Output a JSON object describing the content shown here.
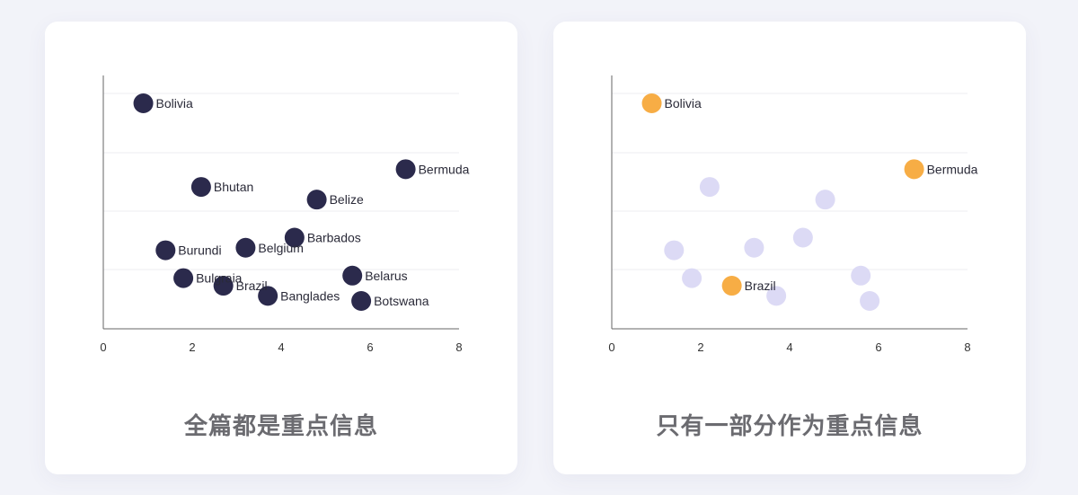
{
  "panels": [
    {
      "caption": "全篇都是重点信息",
      "chart_data": {
        "type": "scatter",
        "xlim": [
          0,
          8
        ],
        "ylim": [
          0,
          10
        ],
        "x_ticks": [
          "0",
          "2",
          "4",
          "6",
          "8"
        ],
        "grid": "horizontal",
        "points": [
          {
            "label": "Bolivia",
            "x": 0.9,
            "y": 8.9,
            "highlight": true
          },
          {
            "label": "Bermuda",
            "x": 6.8,
            "y": 6.3,
            "highlight": true
          },
          {
            "label": "Bhutan",
            "x": 2.2,
            "y": 5.6,
            "highlight": true
          },
          {
            "label": "Belize",
            "x": 4.8,
            "y": 5.1,
            "highlight": true
          },
          {
            "label": "Barbados",
            "x": 4.3,
            "y": 3.6,
            "highlight": true
          },
          {
            "label": "Burundi",
            "x": 1.4,
            "y": 3.1,
            "highlight": true
          },
          {
            "label": "Belgium",
            "x": 3.2,
            "y": 3.2,
            "highlight": true
          },
          {
            "label": "Belarus",
            "x": 5.6,
            "y": 2.1,
            "highlight": true
          },
          {
            "label": "Bulgraia",
            "x": 1.8,
            "y": 2.0,
            "highlight": true
          },
          {
            "label": "Brazil",
            "x": 2.7,
            "y": 1.7,
            "highlight": true
          },
          {
            "label": "Banglades",
            "x": 3.7,
            "y": 1.3,
            "highlight": true
          },
          {
            "label": "Botswana",
            "x": 5.8,
            "y": 1.1,
            "highlight": true
          }
        ]
      },
      "colors": {
        "highlight": "#2b2a4c",
        "muted": "#2b2a4c"
      }
    },
    {
      "caption": "只有一部分作为重点信息",
      "chart_data": {
        "type": "scatter",
        "xlim": [
          0,
          8
        ],
        "ylim": [
          0,
          10
        ],
        "x_ticks": [
          "0",
          "2",
          "4",
          "6",
          "8"
        ],
        "grid": "horizontal",
        "points": [
          {
            "label": "Bolivia",
            "x": 0.9,
            "y": 8.9,
            "highlight": true
          },
          {
            "label": "Bermuda",
            "x": 6.8,
            "y": 6.3,
            "highlight": true
          },
          {
            "label": "Brazil",
            "x": 2.7,
            "y": 1.7,
            "highlight": true
          },
          {
            "x": 2.2,
            "y": 5.6,
            "highlight": false
          },
          {
            "x": 4.8,
            "y": 5.1,
            "highlight": false
          },
          {
            "x": 4.3,
            "y": 3.6,
            "highlight": false
          },
          {
            "x": 1.4,
            "y": 3.1,
            "highlight": false
          },
          {
            "x": 3.2,
            "y": 3.2,
            "highlight": false
          },
          {
            "x": 5.6,
            "y": 2.1,
            "highlight": false
          },
          {
            "x": 1.8,
            "y": 2.0,
            "highlight": false
          },
          {
            "x": 3.7,
            "y": 1.3,
            "highlight": false
          },
          {
            "x": 5.8,
            "y": 1.1,
            "highlight": false
          }
        ]
      },
      "colors": {
        "highlight": "#f7ad45",
        "muted": "#dcdaf5"
      }
    }
  ]
}
